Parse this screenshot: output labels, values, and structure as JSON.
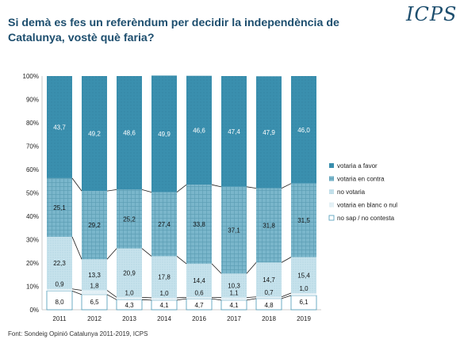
{
  "header": {
    "title": "Si demà es fes un referèndum per decidir la independència de Catalunya, vostè què faria?",
    "logo": "ICPS"
  },
  "footer": {
    "source": "Font: Sondeig Opinió Catalunya 2011-2019, ICPS"
  },
  "chart_data": {
    "type": "bar",
    "stacked": true,
    "percent": true,
    "categories": [
      "2011",
      "2012",
      "2013",
      "2014",
      "2016",
      "2017",
      "2018",
      "2019"
    ],
    "yticks": [
      "0%",
      "10%",
      "20%",
      "30%",
      "40%",
      "50%",
      "60%",
      "70%",
      "80%",
      "90%",
      "100%"
    ],
    "ylim": [
      0,
      100
    ],
    "legend_position": "right",
    "series": [
      {
        "name": "no sap / no contesta",
        "color": "#ffffff",
        "values": [
          8.0,
          6.5,
          4.3,
          4.1,
          4.7,
          4.1,
          4.8,
          6.1
        ],
        "labels": [
          "8,0",
          "6,5",
          "4,3",
          "4,1",
          "4,7",
          "4,1",
          "4,8",
          "6,1"
        ]
      },
      {
        "name": "votaria en blanc o nul",
        "color": "#dcedf3",
        "values": [
          0.9,
          1.8,
          1.0,
          1.0,
          0.6,
          1.1,
          0.7,
          1.0
        ],
        "labels": [
          "0,9",
          "1,8",
          "1,0",
          "1,0",
          "0,6",
          "1,1",
          "0,7",
          "1,0"
        ]
      },
      {
        "name": "no votaria",
        "color": "#bfdde8",
        "values": [
          22.3,
          13.3,
          20.9,
          17.8,
          14.4,
          10.3,
          14.7,
          15.4
        ],
        "labels": [
          "22,3",
          "13,3",
          "20,9",
          "17,8",
          "14,4",
          "10,3",
          "14,7",
          "15,4"
        ]
      },
      {
        "name": "votaria en contra",
        "color": "#7ab6cb",
        "values": [
          25.1,
          29.2,
          25.2,
          27.4,
          33.8,
          37.1,
          31.8,
          31.5
        ],
        "labels": [
          "25,1",
          "29,2",
          "25,2",
          "27,4",
          "33,8",
          "37,1",
          "31,8",
          "31,5"
        ]
      },
      {
        "name": "votaria a favor",
        "color": "#3a8fae",
        "values": [
          43.7,
          49.2,
          48.6,
          49.9,
          46.6,
          47.4,
          47.9,
          46.0
        ],
        "labels": [
          "43,7",
          "49,2",
          "48,6",
          "49,9",
          "46,6",
          "47,4",
          "47,9",
          "46,0"
        ]
      }
    ],
    "legend_order": [
      "votaria a favor",
      "votaria en contra",
      "no votaria",
      "votaria en blanc o nul",
      "no sap / no contesta"
    ]
  }
}
